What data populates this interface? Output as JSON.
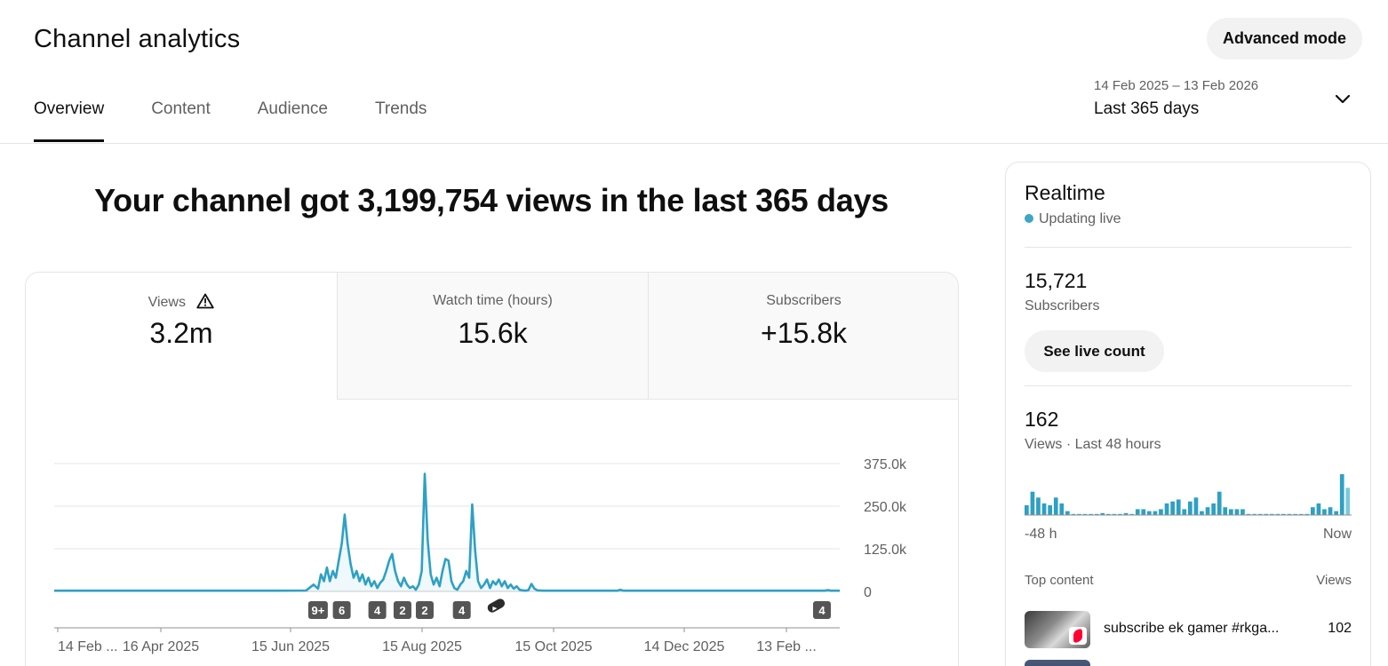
{
  "header": {
    "title": "Channel analytics",
    "advanced_mode_label": "Advanced mode",
    "tabs": [
      {
        "label": "Overview",
        "active": true
      },
      {
        "label": "Content",
        "active": false
      },
      {
        "label": "Audience",
        "active": false
      },
      {
        "label": "Trends",
        "active": false
      }
    ],
    "date_range": "14 Feb 2025 – 13 Feb 2026",
    "date_preset": "Last 365 days",
    "date_dropdown_icon": "chevron-down-icon"
  },
  "headline": "Your channel got 3,199,754 views in the last 365 days",
  "metrics": [
    {
      "label": "Views",
      "value": "3.2m",
      "icon": "warning-icon"
    },
    {
      "label": "Watch time (hours)",
      "value": "15.6k"
    },
    {
      "label": "Subscribers",
      "value": "+15.8k"
    }
  ],
  "chart_data": {
    "type": "line",
    "series": [
      {
        "color": "#2ea0c4",
        "points": [
          [
            0,
            2000
          ],
          [
            30,
            2000
          ],
          [
            60,
            2000
          ],
          [
            90,
            2000
          ],
          [
            120,
            2000
          ],
          [
            150,
            2000
          ],
          [
            170,
            2500
          ],
          [
            175,
            20000
          ],
          [
            178,
            8000
          ],
          [
            180,
            50000
          ],
          [
            182,
            30000
          ],
          [
            184,
            70000
          ],
          [
            186,
            30000
          ],
          [
            188,
            60000
          ],
          [
            190,
            40000
          ],
          [
            192,
            90000
          ],
          [
            194,
            140000
          ],
          [
            196,
            225000
          ],
          [
            198,
            140000
          ],
          [
            200,
            80000
          ],
          [
            202,
            40000
          ],
          [
            204,
            60000
          ],
          [
            206,
            30000
          ],
          [
            208,
            50000
          ],
          [
            210,
            20000
          ],
          [
            212,
            40000
          ],
          [
            214,
            15000
          ],
          [
            216,
            30000
          ],
          [
            218,
            10000
          ],
          [
            220,
            25000
          ],
          [
            222,
            35000
          ],
          [
            224,
            60000
          ],
          [
            226,
            90000
          ],
          [
            228,
            110000
          ],
          [
            230,
            60000
          ],
          [
            232,
            30000
          ],
          [
            234,
            15000
          ],
          [
            236,
            40000
          ],
          [
            238,
            20000
          ],
          [
            240,
            10000
          ],
          [
            242,
            15000
          ],
          [
            244,
            5000
          ],
          [
            246,
            20000
          ],
          [
            248,
            60000
          ],
          [
            250,
            345000
          ],
          [
            252,
            150000
          ],
          [
            254,
            50000
          ],
          [
            256,
            20000
          ],
          [
            258,
            40000
          ],
          [
            260,
            15000
          ],
          [
            262,
            60000
          ],
          [
            264,
            95000
          ],
          [
            266,
            90000
          ],
          [
            268,
            30000
          ],
          [
            270,
            10000
          ],
          [
            272,
            5000
          ],
          [
            274,
            20000
          ],
          [
            276,
            30000
          ],
          [
            278,
            60000
          ],
          [
            280,
            40000
          ],
          [
            282,
            255000
          ],
          [
            284,
            120000
          ],
          [
            286,
            30000
          ],
          [
            288,
            10000
          ],
          [
            290,
            20000
          ],
          [
            292,
            35000
          ],
          [
            294,
            10000
          ],
          [
            296,
            30000
          ],
          [
            298,
            20000
          ],
          [
            300,
            35000
          ],
          [
            302,
            15000
          ],
          [
            304,
            30000
          ],
          [
            306,
            10000
          ],
          [
            308,
            20000
          ],
          [
            310,
            8000
          ],
          [
            312,
            15000
          ],
          [
            314,
            5000
          ],
          [
            316,
            3000
          ],
          [
            318,
            2000
          ],
          [
            320,
            4000
          ],
          [
            322,
            22000
          ],
          [
            324,
            8000
          ],
          [
            326,
            3000
          ],
          [
            330,
            2000
          ],
          [
            360,
            2000
          ],
          [
            380,
            2000
          ],
          [
            382,
            5000
          ],
          [
            384,
            2000
          ],
          [
            420,
            2000
          ],
          [
            450,
            2000
          ],
          [
            480,
            2000
          ],
          [
            510,
            2000
          ],
          [
            520,
            2000
          ],
          [
            522,
            4000
          ],
          [
            524,
            2000
          ],
          [
            530,
            2000
          ]
        ]
      }
    ],
    "y_ticks": [
      "375.0k",
      "250.0k",
      "125.0k",
      "0"
    ],
    "y_values": [
      375000,
      250000,
      125000,
      0
    ],
    "ylim": [
      0,
      375000
    ],
    "x_ticks": [
      "14 Feb ...",
      "16 Apr 2025",
      "15 Jun 2025",
      "15 Aug 2025",
      "15 Oct 2025",
      "14 Dec 2025",
      "13 Feb ..."
    ],
    "markers": [
      {
        "label": "9+",
        "index": 178
      },
      {
        "label": "6",
        "index": 194
      },
      {
        "label": "4",
        "index": 218
      },
      {
        "label": "2",
        "index": 235
      },
      {
        "label": "2",
        "index": 250
      },
      {
        "label": "4",
        "index": 275
      },
      {
        "label": "",
        "index": 297,
        "icon": "shorts-icon"
      },
      {
        "label": "4",
        "index": 518
      }
    ]
  },
  "realtime": {
    "title": "Realtime",
    "status": "Updating live",
    "subscribers_count": "15,721",
    "subscribers_label": "Subscribers",
    "live_count_button": "See live count",
    "views_count": "162",
    "views_label": "Views · Last 48 hours",
    "spark_values": [
      5,
      12,
      9,
      6,
      5,
      9,
      6,
      2,
      0,
      0,
      0,
      0,
      0,
      1,
      0,
      0,
      0,
      1,
      0,
      3,
      3,
      2,
      2,
      3,
      6,
      7,
      8,
      3,
      7,
      9,
      2,
      4,
      6,
      12,
      4,
      3,
      3,
      3,
      0,
      0,
      0,
      0,
      0,
      0,
      0,
      0,
      0,
      0,
      0,
      4,
      6,
      3,
      4,
      2,
      21,
      14
    ],
    "spark_start_label": "-48 h",
    "spark_end_label": "Now",
    "top_content_label": "Top content",
    "top_content_views_header": "Views",
    "top_content": [
      {
        "title": "subscribe ek gamer #rkga...",
        "views": "102"
      }
    ]
  }
}
